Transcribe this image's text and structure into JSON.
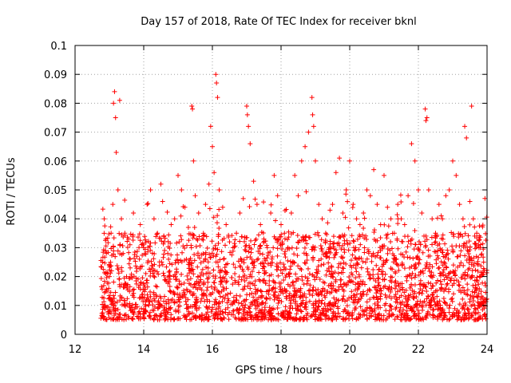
{
  "chart_data": {
    "type": "scatter",
    "title": "Day 157 of 2018, Rate Of TEC Index for receiver bknl",
    "xlabel": "GPS time / hours",
    "ylabel": "ROTI / TECUs",
    "xlim": [
      12,
      24
    ],
    "ylim": [
      0,
      0.1
    ],
    "grid": true,
    "marker": "plus",
    "color": "#ff0000",
    "x_tick_labels": [
      "12",
      "14",
      "16",
      "18",
      "20",
      "22",
      "24"
    ],
    "y_tick_labels": [
      "0",
      "0.01",
      "0.02",
      "0.03",
      "0.04",
      "0.05",
      "0.06",
      "0.07",
      "0.08",
      "0.09",
      "0.1"
    ],
    "x_ticks": [
      12,
      14,
      16,
      18,
      20,
      22,
      24
    ],
    "y_ticks": [
      0,
      0.01,
      0.02,
      0.03,
      0.04,
      0.05,
      0.06,
      0.07,
      0.08,
      0.09,
      0.1
    ],
    "series": [
      {
        "name": "ROTI",
        "x": [
          12.8,
          12.85,
          12.9,
          13.0,
          13.05,
          13.1,
          13.12,
          13.15,
          13.18,
          13.2,
          13.25,
          13.3,
          13.35,
          13.4,
          13.45,
          13.5,
          13.6,
          13.7,
          13.8,
          13.9,
          14.0,
          14.1,
          14.2,
          14.3,
          14.4,
          14.5,
          14.55,
          14.6,
          14.7,
          14.8,
          14.9,
          15.0,
          15.1,
          15.2,
          15.3,
          15.4,
          15.42,
          15.45,
          15.5,
          15.6,
          15.7,
          15.8,
          15.9,
          15.95,
          16.0,
          16.05,
          16.1,
          16.12,
          16.15,
          16.2,
          16.3,
          16.4,
          16.5,
          16.6,
          16.7,
          16.8,
          16.9,
          17.0,
          17.02,
          17.05,
          17.1,
          17.2,
          17.3,
          17.4,
          17.5,
          17.6,
          17.7,
          17.8,
          17.9,
          18.0,
          18.1,
          18.2,
          18.3,
          18.4,
          18.5,
          18.6,
          18.7,
          18.8,
          18.9,
          18.92,
          18.95,
          19.0,
          19.1,
          19.2,
          19.3,
          19.4,
          19.5,
          19.6,
          19.7,
          19.8,
          19.9,
          20.0,
          20.1,
          20.2,
          20.3,
          20.4,
          20.5,
          20.6,
          20.7,
          20.8,
          20.9,
          21.0,
          21.1,
          21.2,
          21.3,
          21.4,
          21.5,
          21.6,
          21.7,
          21.8,
          21.9,
          22.0,
          22.1,
          22.2,
          22.22,
          22.25,
          22.3,
          22.4,
          22.5,
          22.6,
          22.7,
          22.8,
          22.9,
          23.0,
          23.1,
          23.2,
          23.3,
          23.35,
          23.4,
          23.5,
          23.55,
          23.6,
          23.7,
          23.8,
          23.9
        ],
        "y": [
          0.025,
          0.04,
          0.033,
          0.02,
          0.035,
          0.045,
          0.08,
          0.084,
          0.075,
          0.063,
          0.05,
          0.081,
          0.04,
          0.028,
          0.035,
          0.02,
          0.031,
          0.042,
          0.027,
          0.038,
          0.03,
          0.045,
          0.05,
          0.04,
          0.035,
          0.052,
          0.046,
          0.032,
          0.028,
          0.038,
          0.04,
          0.055,
          0.05,
          0.044,
          0.037,
          0.079,
          0.078,
          0.06,
          0.048,
          0.042,
          0.033,
          0.045,
          0.052,
          0.072,
          0.065,
          0.056,
          0.09,
          0.087,
          0.082,
          0.05,
          0.044,
          0.038,
          0.032,
          0.03,
          0.035,
          0.042,
          0.047,
          0.079,
          0.076,
          0.072,
          0.066,
          0.053,
          0.045,
          0.038,
          0.033,
          0.03,
          0.042,
          0.055,
          0.048,
          0.038,
          0.035,
          0.03,
          0.042,
          0.055,
          0.048,
          0.06,
          0.065,
          0.07,
          0.082,
          0.076,
          0.072,
          0.06,
          0.045,
          0.04,
          0.035,
          0.03,
          0.045,
          0.056,
          0.061,
          0.042,
          0.05,
          0.06,
          0.045,
          0.04,
          0.038,
          0.042,
          0.05,
          0.048,
          0.057,
          0.045,
          0.038,
          0.055,
          0.044,
          0.04,
          0.035,
          0.045,
          0.04,
          0.038,
          0.048,
          0.066,
          0.06,
          0.05,
          0.042,
          0.078,
          0.074,
          0.075,
          0.05,
          0.04,
          0.035,
          0.045,
          0.04,
          0.048,
          0.05,
          0.06,
          0.055,
          0.045,
          0.04,
          0.072,
          0.068,
          0.046,
          0.079,
          0.04,
          0.035,
          0.03,
          0.025
        ]
      }
    ]
  }
}
